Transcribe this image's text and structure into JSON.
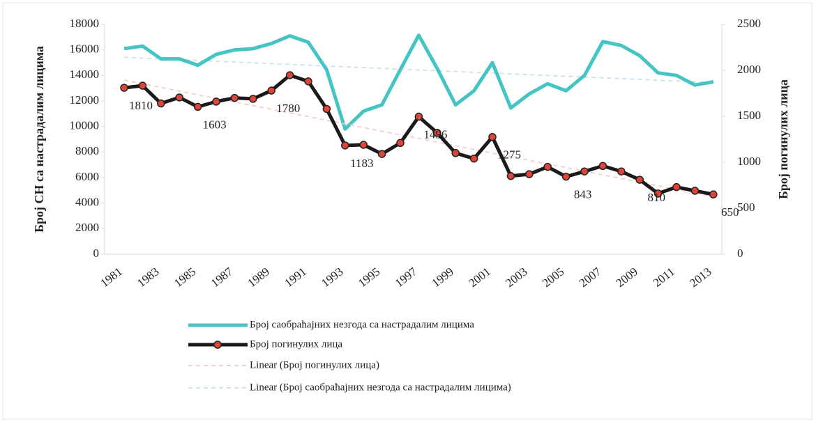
{
  "chart_data": {
    "type": "line",
    "y_label": "Број СН са настрадалим лицима",
    "y2_label": "Број погинулих лица",
    "categories": [
      "1981",
      null,
      "1983",
      null,
      "1985",
      null,
      "1987",
      null,
      "1989",
      null,
      "1991",
      null,
      "1993",
      null,
      "1995",
      null,
      "1997",
      null,
      "1999",
      null,
      "2001",
      null,
      "2003",
      null,
      "2005",
      null,
      "2007",
      null,
      "2009",
      null,
      "2011",
      null,
      "2013"
    ],
    "ylim": [
      0,
      18000
    ],
    "yticks": [
      0,
      2000,
      4000,
      6000,
      8000,
      10000,
      12000,
      14000,
      16000,
      18000
    ],
    "y2lim": [
      0,
      2500
    ],
    "y2ticks": [
      0,
      500,
      1000,
      1500,
      2000,
      2500
    ],
    "series": [
      {
        "name": "Број саобраћајних незгода са настрадалим лицима",
        "color": "#45c4c4",
        "axis": "y",
        "trendline": {
          "name": "Linear (Број саобраћајних незгода са настрадалим лицима)",
          "color": "#cfe3ee"
        },
        "values": [
          16100,
          16300,
          15300,
          15300,
          14800,
          15650,
          16000,
          16100,
          16500,
          17100,
          16600,
          14450,
          9800,
          11200,
          11700,
          14450,
          17150,
          14550,
          11700,
          12800,
          15000,
          11450,
          12550,
          13350,
          12800,
          14000,
          16650,
          16350,
          15550,
          14200,
          14000,
          13250,
          13500
        ]
      },
      {
        "name": "Број погинулих лица",
        "color": "#1a1a1a",
        "marker_color": "#e0453a",
        "axis": "y2",
        "trendline": {
          "name": "Linear (Број погинулих лица)",
          "color": "#f3d2cc"
        },
        "values": [
          1810,
          1833,
          1640,
          1705,
          1603,
          1660,
          1700,
          1690,
          1780,
          1947,
          1880,
          1580,
          1183,
          1190,
          1090,
          1210,
          1496,
          1320,
          1100,
          1040,
          1275,
          850,
          870,
          950,
          843,
          900,
          960,
          900,
          810,
          660,
          730,
          690,
          650
        ],
        "value_labels": [
          "1810",
          null,
          null,
          null,
          "1603",
          null,
          null,
          null,
          "1780",
          null,
          null,
          null,
          "1183",
          null,
          null,
          null,
          "1496",
          null,
          null,
          null,
          "1275",
          null,
          null,
          null,
          "843",
          null,
          null,
          null,
          "810",
          null,
          null,
          null,
          "650"
        ]
      }
    ]
  }
}
